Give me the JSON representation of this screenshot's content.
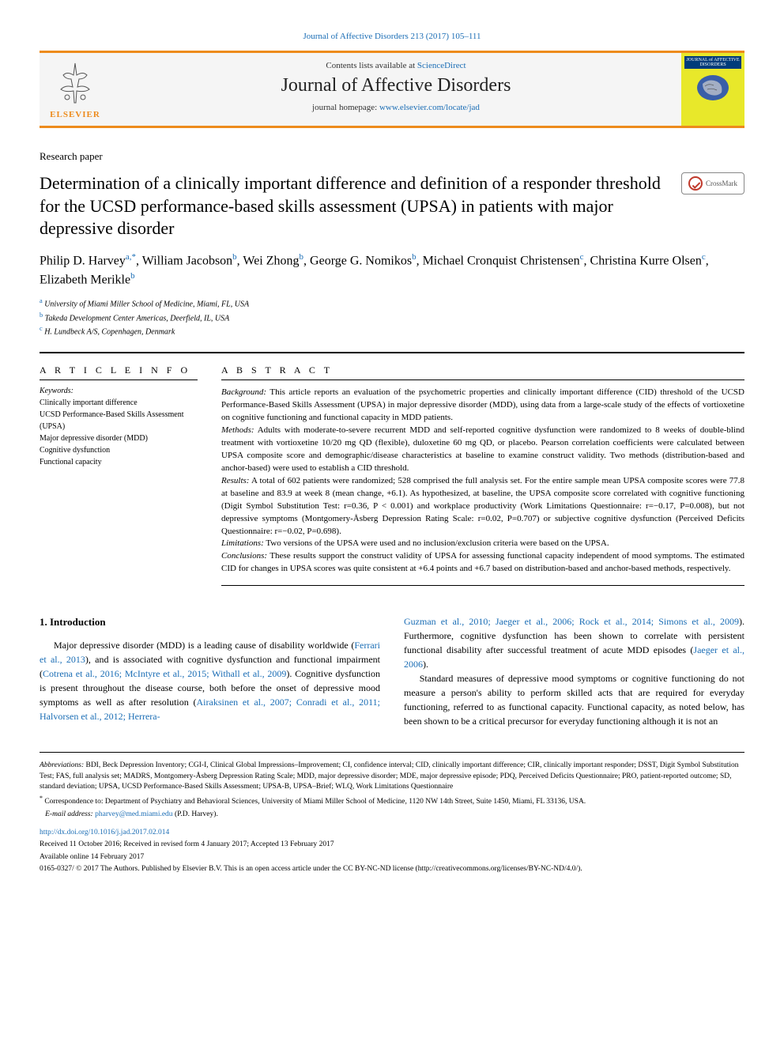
{
  "header": {
    "top_citation": "Journal of Affective Disorders 213 (2017) 105–111",
    "contents_prefix": "Contents lists available at ",
    "contents_link": "ScienceDirect",
    "journal_title": "Journal of Affective Disorders",
    "homepage_prefix": "journal homepage: ",
    "homepage_link": "www.elsevier.com/locate/jad",
    "publisher_name": "ELSEVIER",
    "cover_title": "JOURNAL of AFFECTIVE DISORDERS"
  },
  "article": {
    "type": "Research paper",
    "title": "Determination of a clinically important difference and definition of a responder threshold for the UCSD performance-based skills assessment (UPSA) in patients with major depressive disorder",
    "crossmark_label": "CrossMark",
    "authors_html": "Philip D. Harvey<sup>a,*</sup>, William Jacobson<sup>b</sup>, Wei Zhong<sup>b</sup>, George G. Nomikos<sup>b</sup>, Michael Cronquist Christensen<sup>c</sup>, Christina Kurre Olsen<sup>c</sup>, Elizabeth Merikle<sup>b</sup>",
    "affiliations": [
      {
        "sup": "a",
        "text": "University of Miami Miller School of Medicine, Miami, FL, USA"
      },
      {
        "sup": "b",
        "text": "Takeda Development Center Americas, Deerfield, IL, USA"
      },
      {
        "sup": "c",
        "text": "H. Lundbeck A/S, Copenhagen, Denmark"
      }
    ]
  },
  "article_info": {
    "heading": "A R T I C L E  I N F O",
    "keywords_label": "Keywords:",
    "keywords": [
      "Clinically important difference",
      "UCSD Performance-Based Skills Assessment (UPSA)",
      "Major depressive disorder (MDD)",
      "Cognitive dysfunction",
      "Functional capacity"
    ]
  },
  "abstract": {
    "heading": "A B S T R A C T",
    "sections": [
      {
        "label": "Background:",
        "text": "This article reports an evaluation of the psychometric properties and clinically important difference (CID) threshold of the UCSD Performance-Based Skills Assessment (UPSA) in major depressive disorder (MDD), using data from a large-scale study of the effects of vortioxetine on cognitive functioning and functional capacity in MDD patients."
      },
      {
        "label": "Methods:",
        "text": "Adults with moderate-to-severe recurrent MDD and self-reported cognitive dysfunction were randomized to 8 weeks of double-blind treatment with vortioxetine 10/20 mg QD (flexible), duloxetine 60 mg QD, or placebo. Pearson correlation coefficients were calculated between UPSA composite score and demographic/disease characteristics at baseline to examine construct validity. Two methods (distribution-based and anchor-based) were used to establish a CID threshold."
      },
      {
        "label": "Results:",
        "text": "A total of 602 patients were randomized; 528 comprised the full analysis set. For the entire sample mean UPSA composite scores were 77.8 at baseline and 83.9 at week 8 (mean change, +6.1). As hypothesized, at baseline, the UPSA composite score correlated with cognitive functioning (Digit Symbol Substitution Test: r=0.36, P < 0.001) and workplace productivity (Work Limitations Questionnaire: r=−0.17, P=0.008), but not depressive symptoms (Montgomery-Åsberg Depression Rating Scale: r=0.02, P=0.707) or subjective cognitive dysfunction (Perceived Deficits Questionnaire: r=−0.02, P=0.698)."
      },
      {
        "label": "Limitations:",
        "text": "Two versions of the UPSA were used and no inclusion/exclusion criteria were based on the UPSA."
      },
      {
        "label": "Conclusions:",
        "text": "These results support the construct validity of UPSA for assessing functional capacity independent of mood symptoms. The estimated CID for changes in UPSA scores was quite consistent at +6.4 points and +6.7 based on distribution-based and anchor-based methods, respectively."
      }
    ]
  },
  "introduction": {
    "heading": "1. Introduction",
    "col1_html": "Major depressive disorder (MDD) is a leading cause of disability worldwide (<span class='cite'>Ferrari et al., 2013</span>), and is associated with cognitive dysfunction and functional impairment (<span class='cite'>Cotrena et al., 2016; McIntyre et al., 2015; Withall et al., 2009</span>). Cognitive dysfunction is present throughout the disease course, both before the onset of depressive mood symptoms as well as after resolution (<span class='cite'>Airaksinen et al., 2007; Conradi et al., 2011; Halvorsen et al., 2012; Herrera-</span>",
    "col2_html": "<span class='cite'>Guzman et al., 2010; Jaeger et al., 2006; Rock et al., 2014; Simons et al., 2009</span>). Furthermore, cognitive dysfunction has been shown to correlate with persistent functional disability after successful treatment of acute MDD episodes (<span class='cite'>Jaeger et al., 2006</span>).<br>&nbsp;&nbsp;&nbsp;&nbsp;Standard measures of depressive mood symptoms or cognitive functioning do not measure a person's ability to perform skilled acts that are required for everyday functioning, referred to as functional capacity. Functional capacity, as noted below, has been shown to be a critical precursor for everyday functioning although it is not an"
  },
  "footer": {
    "abbrev_label": "Abbreviations:",
    "abbrev": "BDI, Beck Depression Inventory; CGI-I, Clinical Global Impressions–Improvement; CI, confidence interval; CID, clinically important difference; CIR, clinically important responder; DSST, Digit Symbol Substitution Test; FAS, full analysis set; MADRS, Montgomery-Åsberg Depression Rating Scale; MDD, major depressive disorder; MDE, major depressive episode; PDQ, Perceived Deficits Questionnaire; PRO, patient-reported outcome; SD, standard deviation; UPSA, UCSD Performance-Based Skills Assessment; UPSA-B, UPSA–Brief; WLQ, Work Limitations Questionnaire",
    "corr_label": "*",
    "corr": "Correspondence to: Department of Psychiatry and Behavioral Sciences, University of Miami Miller School of Medicine, 1120 NW 14th Street, Suite 1450, Miami, FL 33136, USA.",
    "email_label": "E-mail address:",
    "email": "pharvey@med.miami.edu",
    "email_suffix": "(P.D. Harvey).",
    "doi": "http://dx.doi.org/10.1016/j.jad.2017.02.014",
    "received": "Received 11 October 2016; Received in revised form 4 January 2017; Accepted 13 February 2017",
    "available": "Available online 14 February 2017",
    "copyright": "0165-0327/ © 2017 The Authors. Published by Elsevier B.V. This is an open access article under the CC BY-NC-ND license (http://creativecommons.org/licenses/BY-NC-ND/4.0/)."
  },
  "colors": {
    "accent_orange": "#ed8b1c",
    "link_blue": "#1a6db5",
    "cover_yellow": "#e8e82a",
    "cover_title_bg": "#003b7a"
  }
}
